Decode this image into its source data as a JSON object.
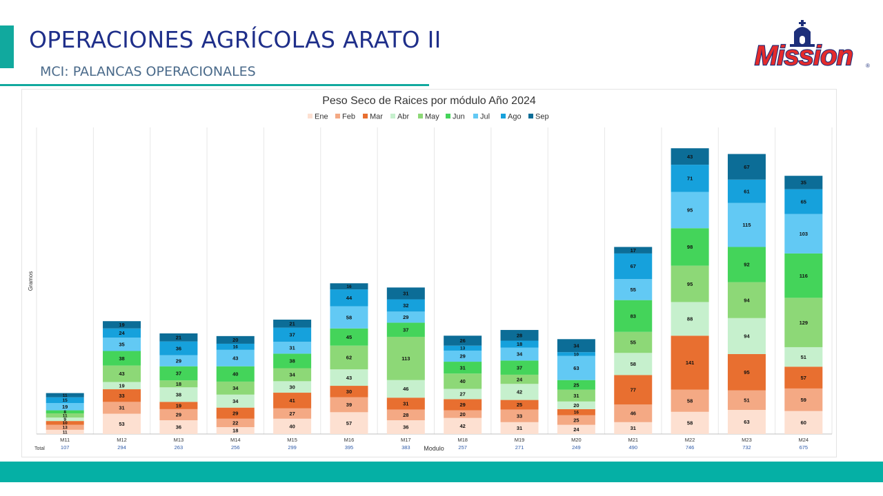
{
  "header": {
    "title": "OPERACIONES AGRÍCOLAS ARATO II",
    "subtitle": "MCI: PALANCAS OPERACIONALES",
    "logo_text": "Mission"
  },
  "colors": {
    "accent": "#11a99e",
    "title": "#1f2f8a",
    "footer": "#05b0a5"
  },
  "chart_data": {
    "type": "bar",
    "stacked": true,
    "title": "Peso Seco de Raices por módulo Año 2024",
    "xlabel": "Modulo",
    "ylabel": "Gramos",
    "legend_position": "top",
    "grid": false,
    "categories": [
      "M11",
      "M12",
      "M13",
      "M14",
      "M15",
      "M16",
      "M17",
      "M18",
      "M19",
      "M20",
      "M21",
      "M22",
      "M23",
      "M24"
    ],
    "totals_label": "Total",
    "totals": [
      107,
      294,
      263,
      256,
      299,
      395,
      383,
      257,
      271,
      249,
      490,
      746,
      732,
      675
    ],
    "ylim": [
      0,
      760
    ],
    "series": [
      {
        "name": "Ene",
        "color": "#fde0d1",
        "values": [
          11,
          53,
          36,
          18,
          40,
          57,
          36,
          42,
          31,
          24,
          31,
          58,
          63,
          60
        ]
      },
      {
        "name": "Feb",
        "color": "#f4a984",
        "values": [
          13,
          31,
          29,
          22,
          27,
          39,
          28,
          20,
          33,
          25,
          46,
          58,
          51,
          59
        ]
      },
      {
        "name": "Mar",
        "color": "#e86f30",
        "values": [
          10,
          33,
          19,
          29,
          41,
          30,
          31,
          29,
          25,
          16,
          77,
          141,
          95,
          57
        ]
      },
      {
        "name": "Abr",
        "color": "#c6f0cd",
        "values": [
          9,
          19,
          38,
          34,
          30,
          43,
          46,
          27,
          42,
          20,
          58,
          88,
          94,
          51
        ]
      },
      {
        "name": "May",
        "color": "#8dd877",
        "values": [
          11,
          43,
          18,
          34,
          34,
          62,
          113,
          40,
          24,
          31,
          55,
          95,
          94,
          129
        ]
      },
      {
        "name": "Jun",
        "color": "#44d45a",
        "values": [
          8,
          38,
          37,
          40,
          38,
          45,
          37,
          31,
          37,
          25,
          83,
          98,
          92,
          116
        ]
      },
      {
        "name": "Jul",
        "color": "#62c9f4",
        "values": [
          19,
          35,
          29,
          43,
          31,
          58,
          29,
          29,
          34,
          63,
          55,
          95,
          115,
          103
        ]
      },
      {
        "name": "Ago",
        "color": "#16a1dc",
        "values": [
          15,
          24,
          36,
          16,
          37,
          44,
          32,
          13,
          18,
          10,
          67,
          71,
          61,
          65
        ]
      },
      {
        "name": "Sep",
        "color": "#0c6d97",
        "values": [
          11,
          19,
          21,
          20,
          21,
          16,
          31,
          26,
          28,
          34,
          17,
          43,
          67,
          35
        ]
      }
    ]
  }
}
